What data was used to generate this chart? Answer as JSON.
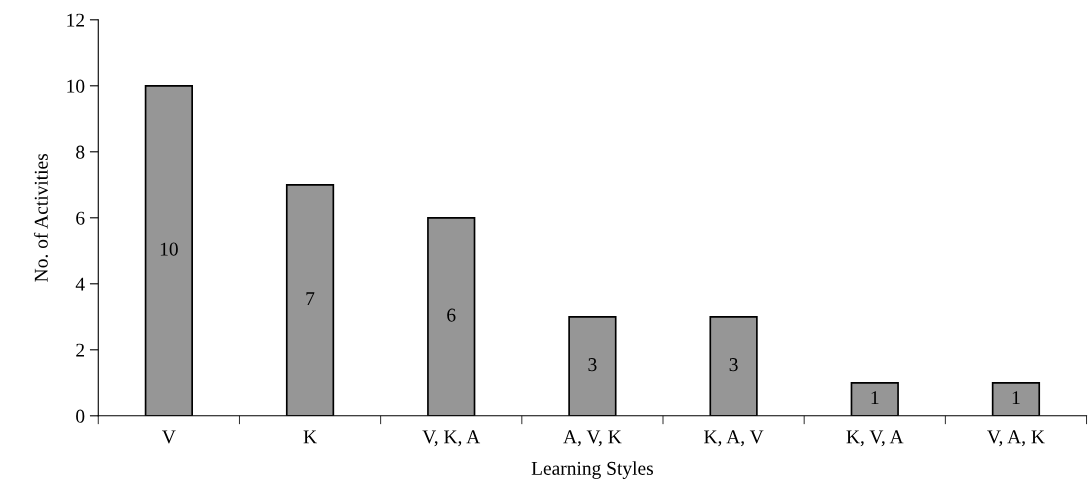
{
  "chart_data": {
    "type": "bar",
    "xlabel": "Learning Styles",
    "ylabel": "No. of Activities",
    "categories": [
      "V",
      "K",
      "V, K, A",
      "A, V, K",
      "K, A, V",
      "K, V, A",
      "V, A, K"
    ],
    "values": [
      10,
      7,
      6,
      3,
      3,
      1,
      1
    ],
    "color": "#969696",
    "ylim": [
      0,
      12
    ],
    "yticks": [
      0,
      2,
      4,
      6,
      8,
      10,
      12
    ],
    "data_labels": true,
    "grid": false,
    "legend": false
  }
}
